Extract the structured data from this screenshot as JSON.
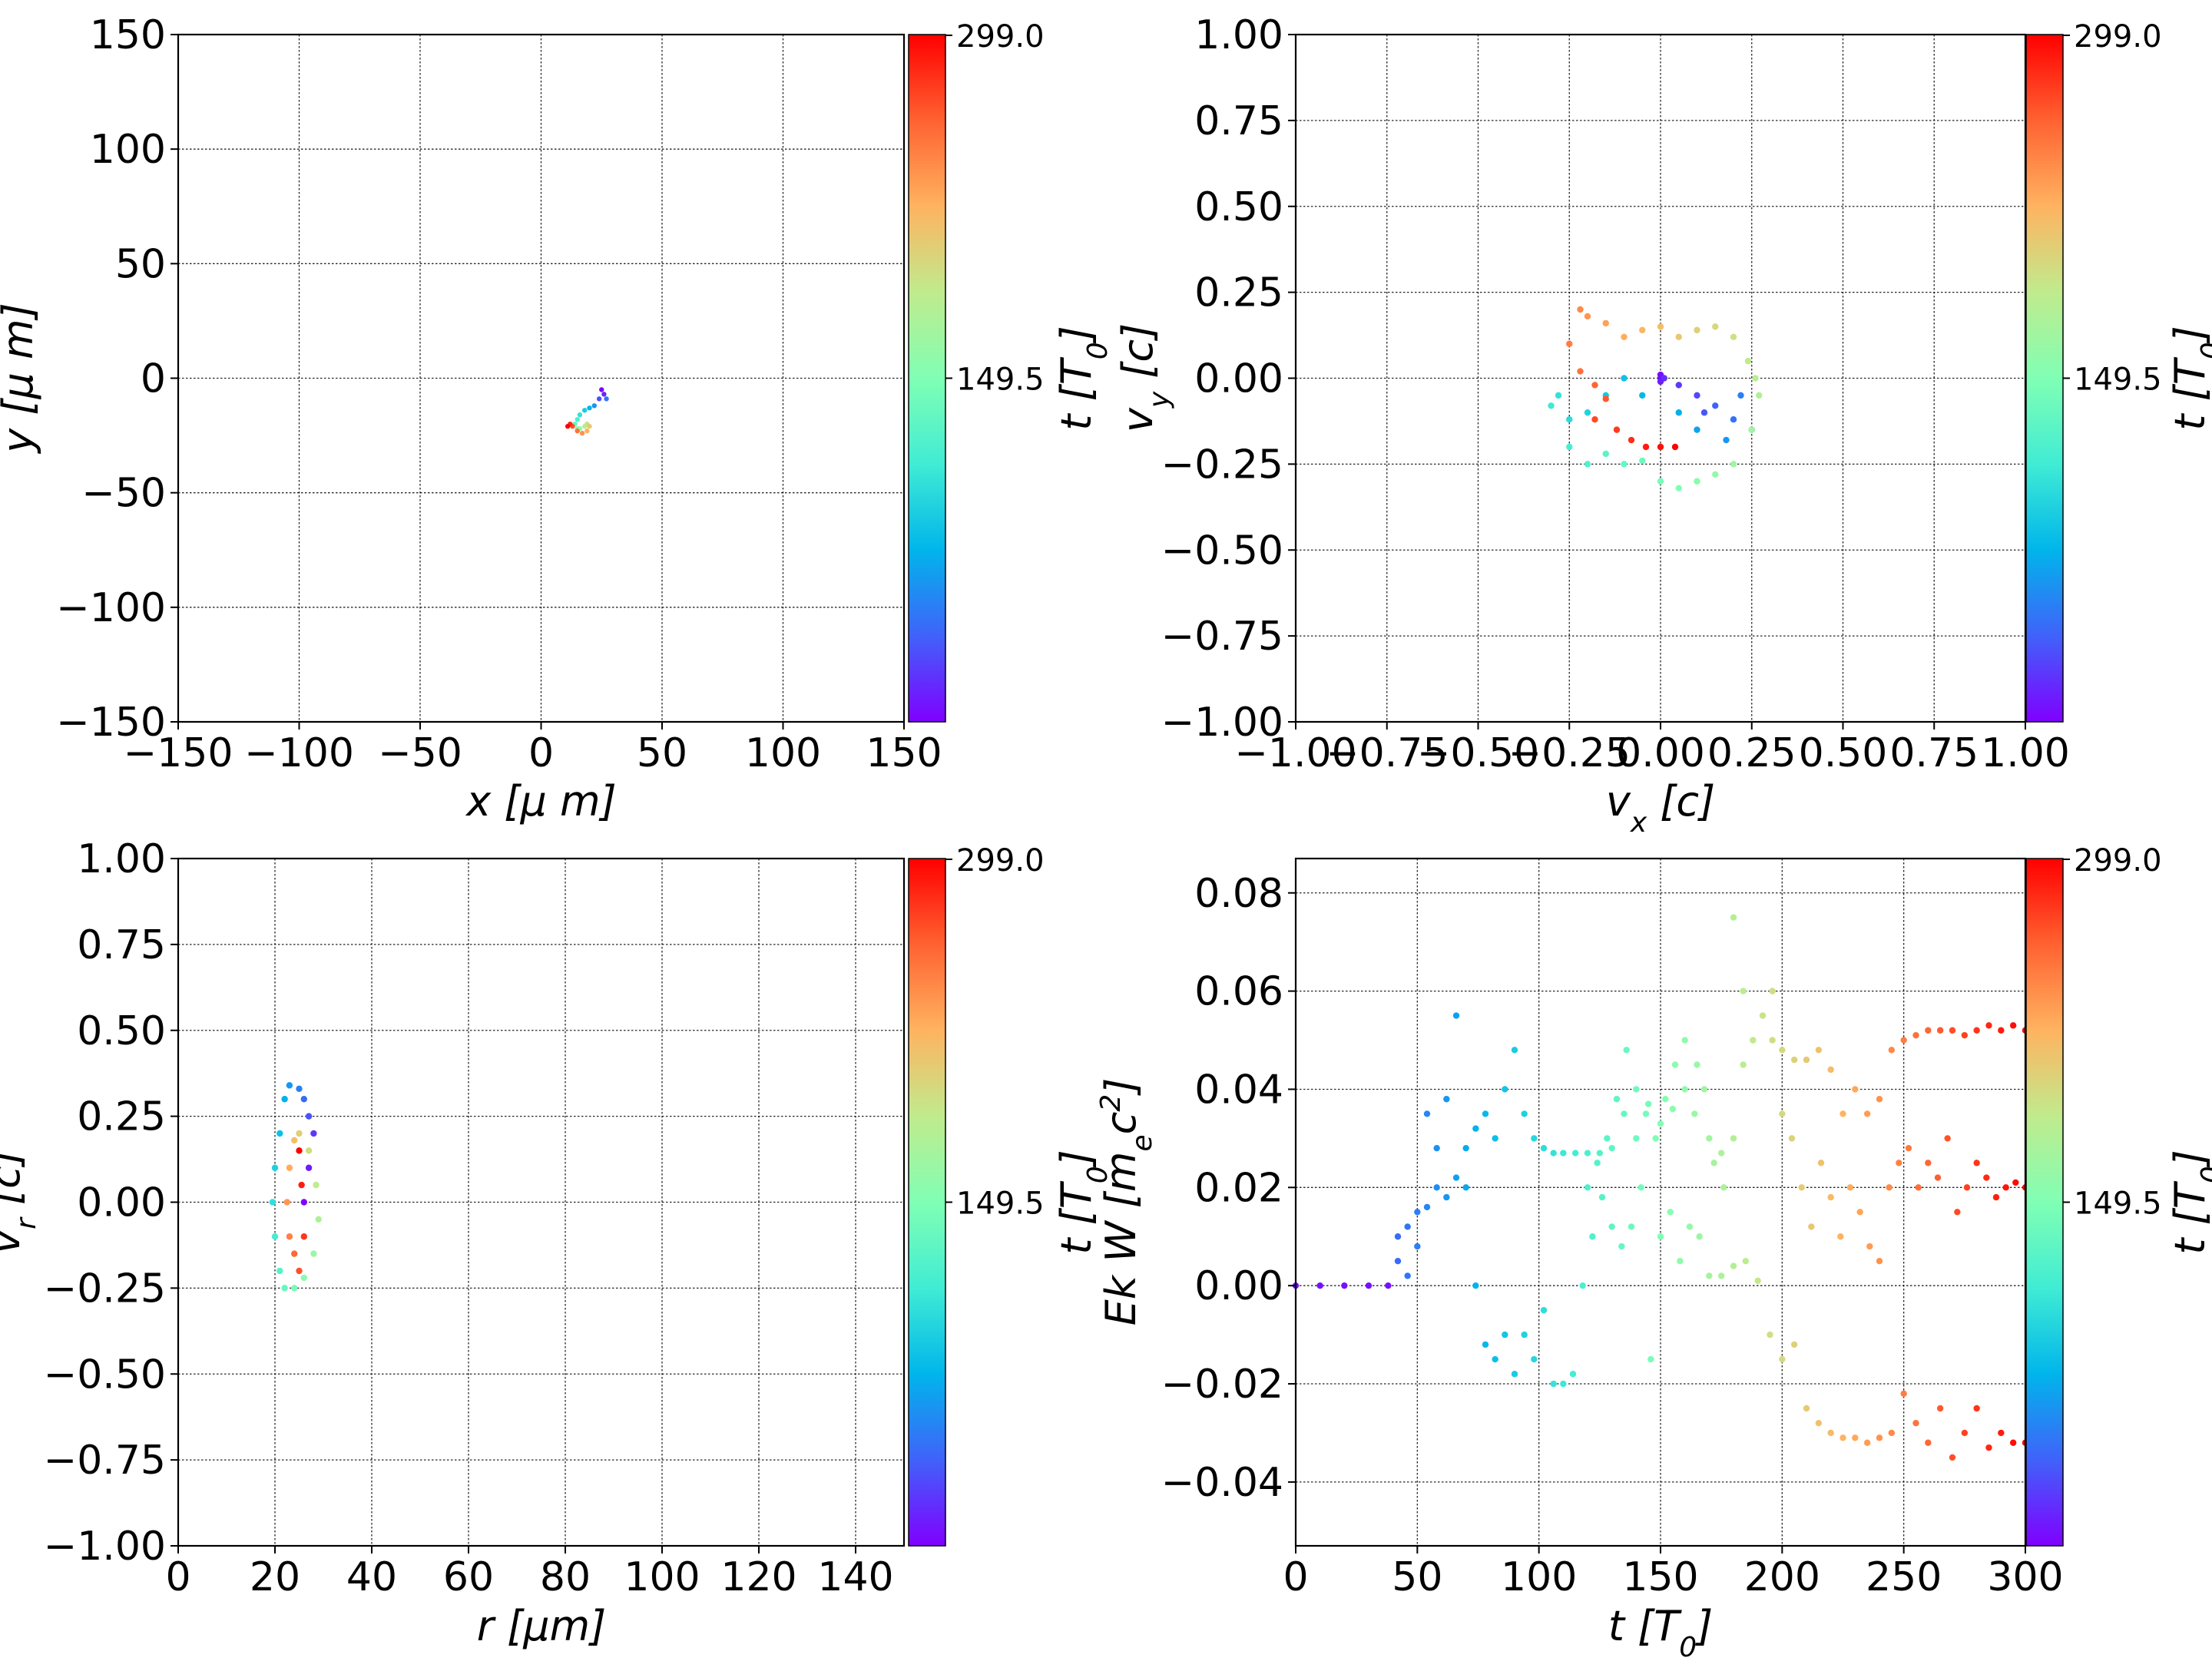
{
  "colormap": [
    "#8000ff",
    "#4062fa",
    "#00b5eb",
    "#40ecd4",
    "#80ffb4",
    "#c0eb8d",
    "#ffb360",
    "#ff6231",
    "#ff0000"
  ],
  "colorbar": {
    "ticks": [
      "299.0",
      "149.5"
    ],
    "label": "t [T0]",
    "label_main": "t",
    "label_open": " [",
    "label_sym": "T",
    "label_sub": "0",
    "label_close": "]"
  },
  "chart_data": [
    {
      "type": "scatter",
      "panel": "x-y position",
      "xlabel": "x  [μ m]",
      "ylabel": "y  [μ m]",
      "xlim": [
        -150,
        150
      ],
      "ylim": [
        -150,
        150
      ],
      "xticks": [
        -150,
        -100,
        -50,
        0,
        50,
        100,
        150
      ],
      "yticks": [
        -150,
        -100,
        -50,
        0,
        50,
        100,
        150
      ],
      "grid": true,
      "points": [
        [
          25,
          -5
        ],
        [
          26,
          -7
        ],
        [
          24,
          -9
        ],
        [
          27,
          -9
        ],
        [
          22,
          -12
        ],
        [
          20,
          -13
        ],
        [
          18,
          -14
        ],
        [
          16,
          -16
        ],
        [
          15,
          -18
        ],
        [
          14,
          -20
        ],
        [
          15,
          -22
        ],
        [
          16,
          -22
        ],
        [
          18,
          -21
        ],
        [
          19,
          -20
        ],
        [
          20,
          -21
        ],
        [
          19,
          -23
        ],
        [
          17,
          -24
        ],
        [
          15,
          -23
        ],
        [
          13,
          -21
        ],
        [
          12,
          -20
        ],
        [
          11,
          -21
        ]
      ]
    },
    {
      "type": "scatter",
      "panel": "vx-vy velocity",
      "xlabel": "v_x [c]",
      "ylabel": "v_y [c]",
      "xlim": [
        -1,
        1
      ],
      "ylim": [
        -1,
        1
      ],
      "xticks": [
        -1.0,
        -0.75,
        -0.5,
        -0.25,
        0.0,
        0.25,
        0.5,
        0.75,
        1.0
      ],
      "yticks": [
        -1.0,
        -0.75,
        -0.5,
        -0.25,
        0.0,
        0.25,
        0.5,
        0.75,
        1.0
      ],
      "grid": true,
      "points": [
        [
          0.0,
          0.0
        ],
        [
          0.0,
          0.01
        ],
        [
          0.0,
          -0.01
        ],
        [
          0.01,
          0.0
        ],
        [
          0.05,
          -0.02
        ],
        [
          0.1,
          -0.05
        ],
        [
          0.12,
          -0.1
        ],
        [
          0.15,
          -0.08
        ],
        [
          0.2,
          -0.12
        ],
        [
          0.22,
          -0.05
        ],
        [
          0.25,
          -0.15
        ],
        [
          0.18,
          -0.18
        ],
        [
          0.1,
          -0.15
        ],
        [
          0.05,
          -0.1
        ],
        [
          -0.05,
          -0.05
        ],
        [
          -0.1,
          0.0
        ],
        [
          -0.15,
          -0.05
        ],
        [
          -0.2,
          -0.1
        ],
        [
          -0.25,
          -0.12
        ],
        [
          -0.28,
          -0.05
        ],
        [
          -0.3,
          -0.08
        ],
        [
          -0.25,
          -0.2
        ],
        [
          -0.2,
          -0.25
        ],
        [
          -0.15,
          -0.22
        ],
        [
          -0.1,
          -0.25
        ],
        [
          -0.05,
          -0.24
        ],
        [
          0.0,
          -0.3
        ],
        [
          0.05,
          -0.32
        ],
        [
          0.1,
          -0.3
        ],
        [
          0.15,
          -0.28
        ],
        [
          0.2,
          -0.25
        ],
        [
          0.25,
          -0.15
        ],
        [
          0.27,
          -0.05
        ],
        [
          0.26,
          0.0
        ],
        [
          0.24,
          0.05
        ],
        [
          0.2,
          0.12
        ],
        [
          0.15,
          0.15
        ],
        [
          0.1,
          0.14
        ],
        [
          0.05,
          0.12
        ],
        [
          0.0,
          0.15
        ],
        [
          -0.05,
          0.14
        ],
        [
          -0.1,
          0.12
        ],
        [
          -0.15,
          0.16
        ],
        [
          -0.2,
          0.18
        ],
        [
          -0.22,
          0.2
        ],
        [
          -0.25,
          0.1
        ],
        [
          -0.22,
          0.02
        ],
        [
          -0.18,
          -0.02
        ],
        [
          -0.15,
          -0.06
        ],
        [
          -0.18,
          -0.12
        ],
        [
          -0.12,
          -0.15
        ],
        [
          -0.08,
          -0.18
        ],
        [
          -0.04,
          -0.2
        ],
        [
          0.0,
          -0.2
        ],
        [
          0.04,
          -0.2
        ]
      ]
    },
    {
      "type": "scatter",
      "panel": "r-vr",
      "xlabel": "r [μm]",
      "ylabel": "v_r [c]",
      "xlim": [
        0,
        150
      ],
      "ylim": [
        -1,
        1
      ],
      "xticks": [
        0,
        20,
        40,
        60,
        80,
        100,
        120,
        140
      ],
      "yticks": [
        -1.0,
        -0.75,
        -0.5,
        -0.25,
        0.0,
        0.25,
        0.5,
        0.75,
        1.0
      ],
      "grid": true,
      "points": [
        [
          26,
          0.0
        ],
        [
          27,
          0.1
        ],
        [
          28,
          0.2
        ],
        [
          27,
          0.25
        ],
        [
          26,
          0.3
        ],
        [
          25,
          0.33
        ],
        [
          23,
          0.34
        ],
        [
          22,
          0.3
        ],
        [
          21,
          0.2
        ],
        [
          20,
          0.1
        ],
        [
          19.5,
          0.0
        ],
        [
          20,
          -0.1
        ],
        [
          21,
          -0.2
        ],
        [
          22,
          -0.25
        ],
        [
          24,
          -0.25
        ],
        [
          26,
          -0.22
        ],
        [
          28,
          -0.15
        ],
        [
          29,
          -0.05
        ],
        [
          28.5,
          0.05
        ],
        [
          27,
          0.15
        ],
        [
          25,
          0.2
        ],
        [
          24,
          0.18
        ],
        [
          23,
          0.1
        ],
        [
          22.5,
          0.0
        ],
        [
          23,
          -0.1
        ],
        [
          24,
          -0.15
        ],
        [
          25,
          -0.2
        ],
        [
          26,
          -0.1
        ],
        [
          25.5,
          0.05
        ],
        [
          25,
          0.15
        ]
      ]
    },
    {
      "type": "scatter",
      "panel": "kinetic energy and work vs time",
      "xlabel": "t [T0]",
      "ylabel": "Ek W [m_e c^2]",
      "xlim": [
        0,
        300
      ],
      "ylim": [
        -0.053,
        0.087
      ],
      "xticks": [
        0,
        50,
        100,
        150,
        200,
        250,
        300
      ],
      "yticks": [
        -0.04,
        -0.02,
        0.0,
        0.02,
        0.04,
        0.06,
        0.08
      ],
      "grid": true,
      "series": [
        {
          "points": [
            [
              0,
              0
            ],
            [
              10,
              0
            ],
            [
              20,
              0
            ],
            [
              30,
              0
            ],
            [
              38,
              0
            ],
            [
              42,
              0.005
            ],
            [
              46,
              0.012
            ],
            [
              50,
              0.008
            ],
            [
              54,
              0.016
            ],
            [
              58,
              0.02
            ],
            [
              62,
              0.018
            ],
            [
              66,
              0.022
            ],
            [
              70,
              0.028
            ],
            [
              74,
              0.032
            ],
            [
              78,
              0.035
            ],
            [
              82,
              0.03
            ],
            [
              86,
              0.04
            ],
            [
              90,
              0.048
            ],
            [
              94,
              0.035
            ],
            [
              98,
              0.03
            ],
            [
              102,
              0.028
            ],
            [
              106,
              0.027
            ],
            [
              110,
              0.027
            ],
            [
              115,
              0.027
            ],
            [
              120,
              0.027
            ],
            [
              125,
              0.027
            ],
            [
              130,
              0.028
            ],
            [
              135,
              0.035
            ],
            [
              140,
              0.03
            ],
            [
              145,
              0.037
            ],
            [
              150,
              0.033
            ],
            [
              155,
              0.036
            ],
            [
              160,
              0.04
            ],
            [
              165,
              0.045
            ],
            [
              170,
              0.03
            ],
            [
              175,
              0.027
            ],
            [
              180,
              0.075
            ],
            [
              184,
              0.06
            ],
            [
              188,
              0.05
            ],
            [
              192,
              0.055
            ],
            [
              196,
              0.06
            ],
            [
              200,
              0.048
            ],
            [
              205,
              0.046
            ],
            [
              210,
              0.046
            ],
            [
              215,
              0.048
            ],
            [
              220,
              0.044
            ],
            [
              225,
              0.035
            ],
            [
              230,
              0.04
            ],
            [
              235,
              0.035
            ],
            [
              240,
              0.038
            ],
            [
              245,
              0.048
            ],
            [
              250,
              0.05
            ],
            [
              255,
              0.051
            ],
            [
              260,
              0.052
            ],
            [
              265,
              0.052
            ],
            [
              270,
              0.052
            ],
            [
              275,
              0.051
            ],
            [
              280,
              0.052
            ],
            [
              285,
              0.053
            ],
            [
              290,
              0.052
            ],
            [
              295,
              0.053
            ],
            [
              300,
              0.052
            ]
          ]
        },
        {
          "points": [
            [
              42,
              0.01
            ],
            [
              46,
              0.002
            ],
            [
              50,
              0.015
            ],
            [
              54,
              0.035
            ],
            [
              58,
              0.028
            ],
            [
              62,
              0.038
            ],
            [
              66,
              0.055
            ],
            [
              70,
              0.02
            ],
            [
              74,
              0.0
            ],
            [
              78,
              -0.012
            ],
            [
              82,
              -0.015
            ],
            [
              86,
              -0.01
            ],
            [
              90,
              -0.018
            ],
            [
              94,
              -0.01
            ],
            [
              98,
              -0.015
            ],
            [
              102,
              -0.005
            ],
            [
              106,
              -0.02
            ],
            [
              110,
              -0.02
            ],
            [
              114,
              -0.018
            ],
            [
              118,
              0.0
            ],
            [
              122,
              0.01
            ],
            [
              126,
              0.018
            ],
            [
              130,
              0.012
            ],
            [
              134,
              0.008
            ],
            [
              138,
              0.012
            ],
            [
              142,
              0.02
            ],
            [
              146,
              -0.015
            ],
            [
              150,
              0.01
            ],
            [
              154,
              0.015
            ],
            [
              158,
              0.005
            ],
            [
              162,
              0.012
            ],
            [
              166,
              0.01
            ],
            [
              170,
              0.002
            ],
            [
              175,
              0.002
            ],
            [
              180,
              0.004
            ],
            [
              185,
              0.005
            ],
            [
              190,
              0.001
            ],
            [
              195,
              -0.01
            ],
            [
              200,
              -0.015
            ],
            [
              205,
              -0.012
            ],
            [
              210,
              -0.025
            ],
            [
              215,
              -0.028
            ],
            [
              220,
              -0.03
            ],
            [
              225,
              -0.031
            ],
            [
              230,
              -0.031
            ],
            [
              235,
              -0.032
            ],
            [
              240,
              -0.031
            ],
            [
              245,
              -0.03
            ],
            [
              250,
              -0.022
            ],
            [
              255,
              -0.028
            ],
            [
              260,
              -0.032
            ],
            [
              265,
              -0.025
            ],
            [
              270,
              -0.035
            ],
            [
              275,
              -0.03
            ],
            [
              280,
              -0.025
            ],
            [
              285,
              -0.033
            ],
            [
              290,
              -0.03
            ],
            [
              295,
              -0.032
            ],
            [
              300,
              -0.032
            ]
          ]
        },
        {
          "points": [
            [
              120,
              0.02
            ],
            [
              124,
              0.025
            ],
            [
              128,
              0.03
            ],
            [
              132,
              0.038
            ],
            [
              136,
              0.048
            ],
            [
              140,
              0.04
            ],
            [
              144,
              0.035
            ],
            [
              148,
              0.03
            ],
            [
              152,
              0.038
            ],
            [
              156,
              0.045
            ],
            [
              160,
              0.05
            ],
            [
              164,
              0.035
            ],
            [
              168,
              0.04
            ],
            [
              172,
              0.025
            ],
            [
              176,
              0.02
            ],
            [
              180,
              0.03
            ],
            [
              184,
              0.045
            ],
            [
              188,
              0.05
            ],
            [
              192,
              0.055
            ],
            [
              196,
              0.05
            ],
            [
              200,
              0.035
            ],
            [
              204,
              0.03
            ],
            [
              208,
              0.02
            ],
            [
              212,
              0.012
            ],
            [
              216,
              0.025
            ],
            [
              220,
              0.018
            ],
            [
              224,
              0.01
            ],
            [
              228,
              0.02
            ],
            [
              232,
              0.015
            ],
            [
              236,
              0.008
            ],
            [
              240,
              0.005
            ],
            [
              244,
              0.02
            ],
            [
              248,
              0.025
            ],
            [
              252,
              0.028
            ],
            [
              256,
              0.02
            ],
            [
              260,
              0.025
            ],
            [
              264,
              0.022
            ],
            [
              268,
              0.03
            ],
            [
              272,
              0.015
            ],
            [
              276,
              0.02
            ],
            [
              280,
              0.025
            ],
            [
              284,
              0.022
            ],
            [
              288,
              0.018
            ],
            [
              292,
              0.02
            ],
            [
              296,
              0.021
            ],
            [
              300,
              0.02
            ]
          ]
        }
      ]
    }
  ]
}
